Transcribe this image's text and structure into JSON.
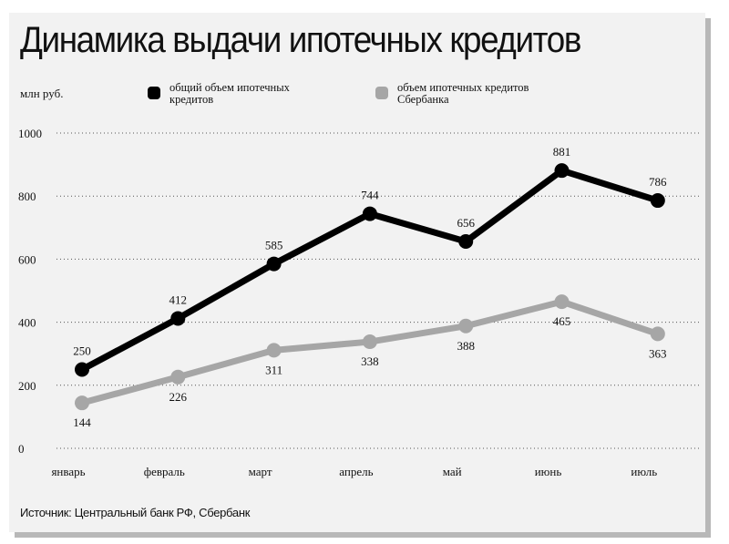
{
  "title": "Динамика выдачи ипотечных кредитов",
  "unit_label": "млн руб.",
  "source": "Источник: Центральный банк РФ, Сбербанк",
  "colors": {
    "series_total": "#000000",
    "series_sber": "#a6a6a6",
    "panel": "#f2f2f2"
  },
  "legend": [
    {
      "label": "общий объем ипотечных кредитов"
    },
    {
      "label": "объем ипотечных кредитов Сбербанка"
    }
  ],
  "chart_data": {
    "type": "line",
    "categories": [
      "январь",
      "февраль",
      "март",
      "апрель",
      "май",
      "июнь",
      "июль"
    ],
    "yticks": [
      "0",
      "200",
      "400",
      "600",
      "800",
      "1000"
    ],
    "ylim": [
      0,
      1000
    ],
    "grid": true,
    "legend_position": "top",
    "series": [
      {
        "name": "общий объем ипотечных кредитов",
        "values": [
          250,
          412,
          585,
          744,
          656,
          881,
          786
        ],
        "labels": [
          "250",
          "412",
          "585",
          "744",
          "656",
          "881",
          "786"
        ]
      },
      {
        "name": "объем ипотечных кредитов Сбербанка",
        "values": [
          144,
          226,
          311,
          338,
          388,
          465,
          363
        ],
        "labels": [
          "144",
          "226",
          "311",
          "338",
          "388",
          "465",
          "363"
        ]
      }
    ]
  }
}
